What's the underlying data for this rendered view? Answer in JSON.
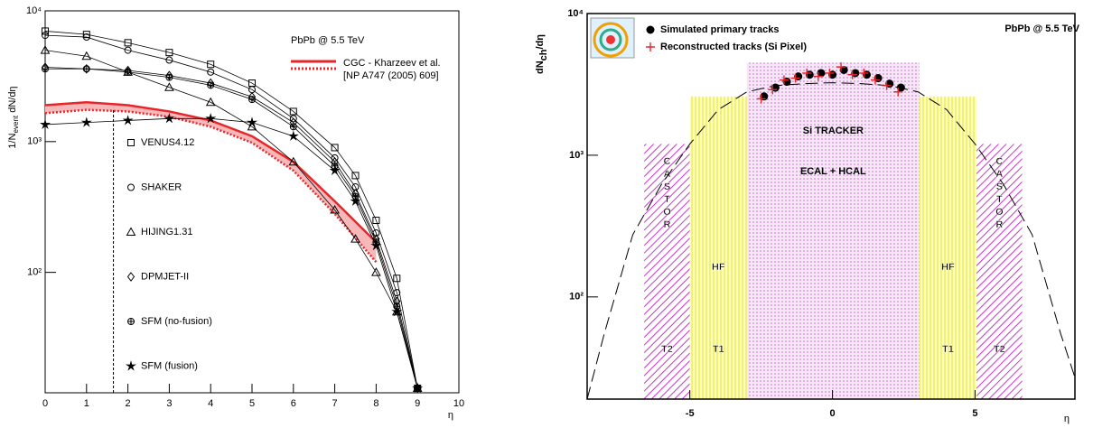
{
  "chart_data": [
    {
      "type": "line",
      "annotation": "PbPb @ 5.5 TeV",
      "ylabel": [
        "1/N",
        "event",
        " dN/dη"
      ],
      "xlabel": "η",
      "xlim": [
        0,
        10
      ],
      "ylim": [
        12,
        10000
      ],
      "log_y": true,
      "xticks": [
        0,
        1,
        2,
        3,
        4,
        5,
        6,
        7,
        8,
        9,
        10
      ],
      "yticks": [
        {
          "value": 100,
          "label": "10²"
        },
        {
          "value": 1000,
          "label": "10³"
        },
        {
          "value": 10000,
          "label": "10⁴"
        }
      ],
      "x": [
        0,
        1,
        2,
        3,
        4,
        5,
        6,
        7,
        7.5,
        8,
        8.5,
        9
      ],
      "series": [
        {
          "name": "VENUS4.12",
          "marker": "square",
          "color": "#000000",
          "values": [
            7000,
            6600,
            5700,
            4800,
            3900,
            2800,
            1700,
            900,
            550,
            250,
            90,
            13
          ]
        },
        {
          "name": "SHAKER",
          "marker": "circle",
          "color": "#000000",
          "values": [
            6500,
            6300,
            5000,
            4200,
            3400,
            2500,
            1500,
            750,
            450,
            200,
            70,
            13
          ]
        },
        {
          "name": "HIJING1.31",
          "marker": "triangle",
          "color": "#000000",
          "values": [
            5000,
            4500,
            3400,
            2600,
            2000,
            1300,
            700,
            300,
            180,
            100,
            50,
            13
          ]
        },
        {
          "name": "DPMJET-II",
          "marker": "diamond",
          "color": "#000000",
          "values": [
            3700,
            3600,
            3500,
            3200,
            2800,
            2200,
            1400,
            700,
            400,
            180,
            60,
            13
          ]
        },
        {
          "name": "SFM (no-fusion)",
          "marker": "crosscircle",
          "color": "#000000",
          "values": [
            3600,
            3600,
            3400,
            3100,
            2700,
            2100,
            1300,
            650,
            380,
            170,
            55,
            13
          ]
        },
        {
          "name": "SFM (fusion)",
          "marker": "star",
          "color": "#000000",
          "values": [
            1350,
            1400,
            1450,
            1500,
            1500,
            1400,
            1100,
            600,
            350,
            160,
            50,
            13
          ]
        }
      ],
      "band": {
        "name": "CGC - Kharzeev et al.",
        "reference": "[NP A747 (2005) 609]",
        "color": "#e8262a",
        "x": [
          0,
          1,
          2,
          3,
          4,
          5,
          6,
          7,
          8
        ],
        "upper": [
          1900,
          2000,
          1900,
          1700,
          1450,
          1100,
          700,
          350,
          170
        ],
        "lower": [
          1650,
          1750,
          1700,
          1550,
          1300,
          980,
          600,
          280,
          120
        ]
      },
      "cutoff": {
        "x": 1.65,
        "y": 1800
      }
    },
    {
      "type": "scatter",
      "annotation": "PbPb @ 5.5 TeV",
      "ylabel": [
        "dN",
        "ch",
        "/dη"
      ],
      "xlabel": "η",
      "xlim": [
        -8.6,
        8.5
      ],
      "ylim": [
        19,
        10000
      ],
      "log_y": true,
      "xticks": [
        -5,
        0,
        5
      ],
      "yticks": [
        {
          "value": 100,
          "label": "10²"
        },
        {
          "value": 1000,
          "label": "10³"
        },
        {
          "value": 10000,
          "label": "10⁴"
        }
      ],
      "regions": [
        {
          "labels": [
            "CASTOR",
            "T2"
          ],
          "x": [
            -6.6,
            -5
          ],
          "top": 1200,
          "pattern": "hatch"
        },
        {
          "labels": [
            "HF",
            "T1"
          ],
          "x": [
            -5,
            -3
          ],
          "top": 2600,
          "pattern": "stripes"
        },
        {
          "labels": [
            "Si TRACKER",
            "ECAL + HCAL"
          ],
          "x": [
            -3,
            3.05
          ],
          "top": 4500,
          "pattern": "dots"
        },
        {
          "labels": [
            "HF",
            "T1"
          ],
          "x": [
            3.05,
            5.05
          ],
          "top": 2600,
          "pattern": "stripes"
        },
        {
          "labels": [
            "CASTOR",
            "T2"
          ],
          "x": [
            5.05,
            6.65
          ],
          "top": 1200,
          "pattern": "hatch"
        }
      ],
      "model": {
        "x": [
          -8.6,
          -8,
          -7,
          -6,
          -5,
          -4,
          -3,
          -2,
          -1,
          0,
          1,
          2,
          3,
          4,
          5,
          6,
          7,
          8,
          8.5
        ],
        "values": [
          19,
          55,
          275,
          620,
          1200,
          2100,
          2800,
          3100,
          3200,
          3250,
          3200,
          3100,
          2800,
          2100,
          1200,
          620,
          275,
          55,
          27
        ]
      },
      "series": [
        {
          "name": "Simulated primary tracks",
          "marker": "dot",
          "color": "#000000",
          "x": [
            -2.4,
            -2.0,
            -1.6,
            -1.2,
            -0.8,
            -0.4,
            0,
            0.4,
            0.8,
            1.2,
            1.6,
            2.0,
            2.4
          ],
          "values": [
            2600,
            3000,
            3300,
            3600,
            3700,
            3800,
            3700,
            4000,
            3800,
            3700,
            3500,
            3200,
            3000
          ]
        },
        {
          "name": "Reconstructed tracks (Si Pixel)",
          "marker": "cross",
          "color": "#e8262a",
          "x": [
            -2.5,
            -2.1,
            -1.7,
            -1.3,
            -0.9,
            -0.5,
            -0.1,
            0.3,
            0.7,
            1.1,
            1.5,
            1.9,
            2.3
          ],
          "values": [
            2500,
            2900,
            3400,
            3500,
            3800,
            3600,
            3800,
            4200,
            3700,
            3800,
            3400,
            3100,
            2800
          ]
        }
      ]
    }
  ]
}
